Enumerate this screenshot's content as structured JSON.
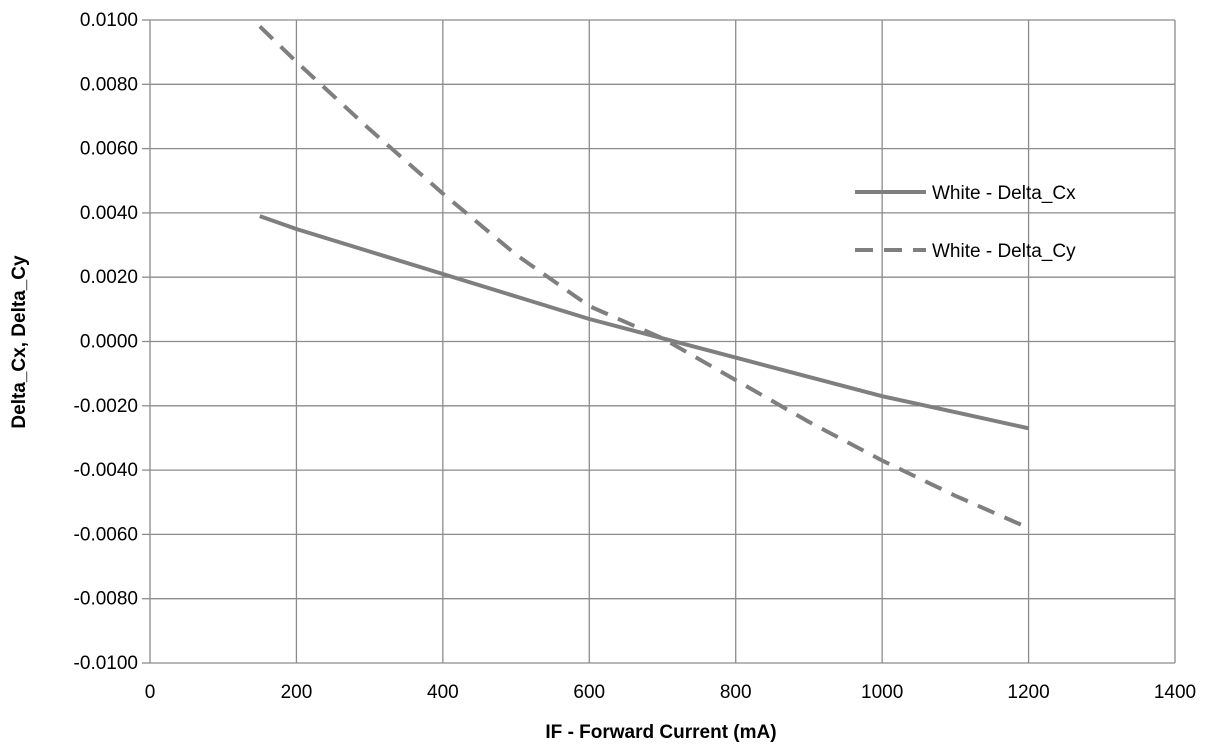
{
  "chart_data": {
    "type": "line",
    "xlabel": "IF - Forward Current (mA)",
    "ylabel": "Delta_Cx, Delta_Cy",
    "xlim": [
      0,
      1400
    ],
    "ylim": [
      -0.01,
      0.01
    ],
    "x_ticks": [
      "0",
      "200",
      "400",
      "600",
      "800",
      "1000",
      "1200",
      "1400"
    ],
    "y_ticks": [
      "0.0100",
      "0.0080",
      "0.0060",
      "0.0040",
      "0.0020",
      "0.0000",
      "-0.0020",
      "-0.0040",
      "-0.0060",
      "-0.0080",
      "-0.0100"
    ],
    "grid": true,
    "legend_position": "right",
    "series": [
      {
        "name": "White - Delta_Cx",
        "style": "solid",
        "color": "#7f7f7f",
        "x": [
          150,
          200,
          300,
          400,
          500,
          600,
          700,
          800,
          900,
          1000,
          1100,
          1200
        ],
        "y": [
          0.0039,
          0.0035,
          0.0028,
          0.0021,
          0.0014,
          0.0007,
          0.0001,
          -0.0005,
          -0.0011,
          -0.0017,
          -0.0022,
          -0.0027
        ]
      },
      {
        "name": "White - Delta_Cy",
        "style": "dashed",
        "color": "#7f7f7f",
        "x": [
          150,
          200,
          300,
          400,
          500,
          600,
          700,
          800,
          900,
          1000,
          1100,
          1200
        ],
        "y": [
          0.0098,
          0.0087,
          0.0066,
          0.0046,
          0.0027,
          0.0011,
          0.0001,
          -0.0012,
          -0.0025,
          -0.0037,
          -0.0048,
          -0.0058
        ]
      }
    ]
  }
}
